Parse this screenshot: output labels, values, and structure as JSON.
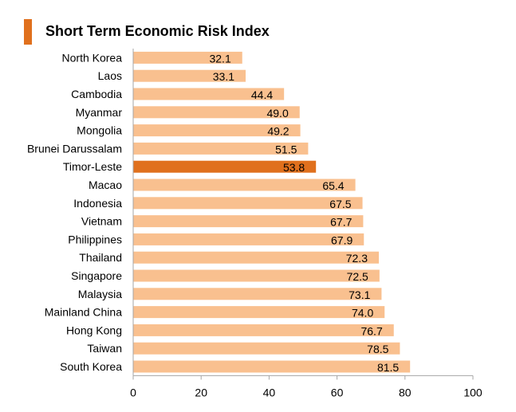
{
  "chart_data": {
    "type": "bar",
    "orientation": "horizontal",
    "title": "Short Term Economic Risk Index",
    "categories": [
      "North Korea",
      "Laos",
      "Cambodia",
      "Myanmar",
      "Mongolia",
      "Brunei Darussalam",
      "Timor-Leste",
      "Macao",
      "Indonesia",
      "Vietnam",
      "Philippines",
      "Thailand",
      "Singapore",
      "Malaysia",
      "Mainland China",
      "Hong Kong",
      "Taiwan",
      "South Korea"
    ],
    "values": [
      32.1,
      33.1,
      44.4,
      49.0,
      49.2,
      51.5,
      53.8,
      65.4,
      67.5,
      67.7,
      67.9,
      72.3,
      72.5,
      73.1,
      74.0,
      76.7,
      78.5,
      81.5
    ],
    "value_labels": [
      "32.1",
      "33.1",
      "44.4",
      "49.0",
      "49.2",
      "51.5",
      "53.8",
      "65.4",
      "67.5",
      "67.7",
      "67.9",
      "72.3",
      "72.5",
      "73.1",
      "74.0",
      "76.7",
      "78.5",
      "81.5"
    ],
    "highlight": "Timor-Leste",
    "xlim": [
      0,
      100
    ],
    "xticks": [
      0,
      20,
      40,
      60,
      80,
      100
    ],
    "xtick_labels": [
      "0",
      "20",
      "40",
      "60",
      "80",
      "100"
    ],
    "xlabel": "",
    "ylabel": "",
    "grid": false,
    "colors": {
      "bar": "#f9c08f",
      "highlight": "#e0701d",
      "title_marker": "#e0701d",
      "axis": "#a6a6a6",
      "text": "#000000"
    }
  }
}
